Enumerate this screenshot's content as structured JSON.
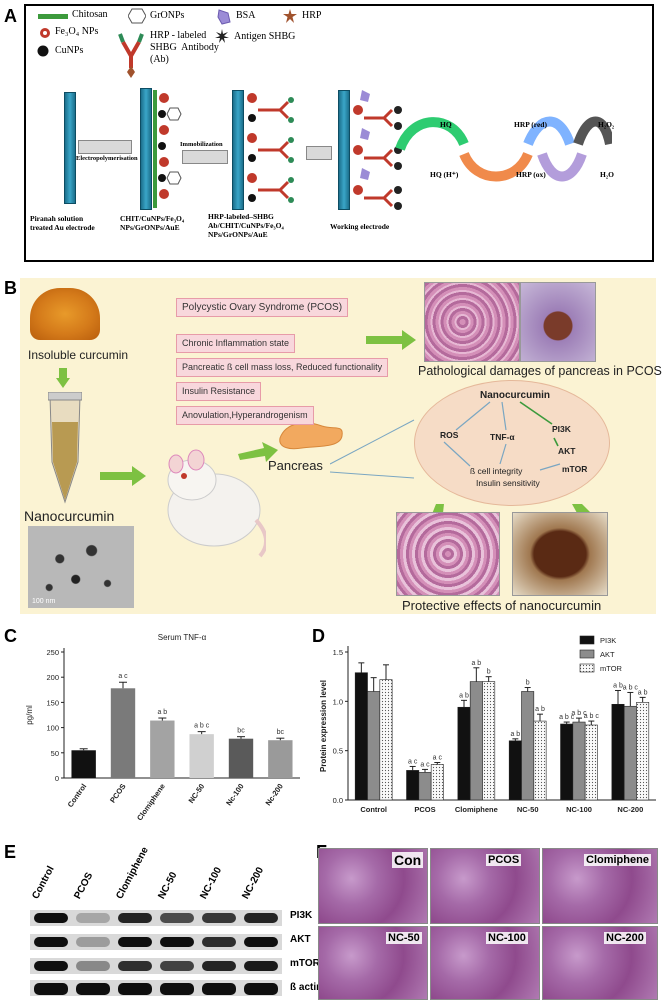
{
  "panel_labels": {
    "a": "A",
    "b": "B",
    "c": "C",
    "d": "D",
    "e": "E",
    "f": "F"
  },
  "panelA": {
    "legend": {
      "chitosan": "Chitosan",
      "fe3o4": "Fe₃O₄ NPs",
      "cunps": "CuNPs",
      "gronps": "GrONPs",
      "hrp_ab": "HRP - labeled\nSHBG  Antibody\n(Ab)",
      "bsa": "BSA",
      "hrp": "HRP",
      "antigen": "Antigen SHBG"
    },
    "steps": {
      "s1": "Electropolymerisation",
      "s2": "Immobilization"
    },
    "captions": {
      "c1": "Piranah solution\ntreated Au electrode",
      "c2": "CHIT/CuNPs/Fe₃O₄\nNPs/GrONPs/AuE",
      "c3": "HRP-labeled–SHBG\nAb/CHIT/CuNPs/Fe₃O₄\nNPs/GrONPs/AuE",
      "c4": "Working electrode"
    },
    "cycle": {
      "hq": "HQ",
      "hq_h": "HQ (H⁺)",
      "hrp_red": "HRP (red)",
      "hrp_ox": "HRP (ox)",
      "h2o2": "H₂O₂",
      "h2o": "H₂O"
    }
  },
  "panelB": {
    "boxes": [
      "Polycystic Ovary Syndrome (PCOS)",
      "Chronic Inflammation state",
      "Pancreatic ß cell mass loss, Reduced functionality",
      "Insulin Resistance",
      "Anovulation,Hyperandrogenism"
    ],
    "insoluble": "Insoluble curcumin",
    "nanocurcumin": "Nanocurcumin",
    "pancreas": "Pancreas",
    "patho": "Pathological damages of pancreas in PCOS",
    "protective": "Protective effects of nanocurcumin",
    "scale": "100 nm",
    "oval": {
      "title": "Nanocurcumin",
      "ros": "ROS",
      "tnf": "TNF-α",
      "pi3k": "PI3K",
      "akt": "AKT",
      "mtor": "mTOR",
      "l1": "ß cell integrity",
      "l2": "Insulin sensitivity"
    }
  },
  "chart_data": [
    {
      "type": "bar",
      "panel": "C",
      "title": "Serum TNF-α",
      "ylabel": "pg/ml",
      "ylim": [
        0,
        250
      ],
      "yticks": [
        0,
        50,
        100,
        150,
        200,
        250
      ],
      "categories": [
        "Control",
        "PCOS",
        "Clomiphene",
        "NC-50",
        "Nc-100",
        "Nc-200"
      ],
      "values": [
        55,
        178,
        114,
        87,
        78,
        75
      ],
      "errors": [
        3,
        12,
        5,
        5,
        4,
        4
      ],
      "sig": [
        "",
        "a c",
        "a b",
        "a b c",
        "bc",
        "bc"
      ],
      "colors": [
        "#111111",
        "#7a7a7a",
        "#a3a3a3",
        "#d0d0d0",
        "#5a5a5a",
        "#9a9a9a"
      ]
    },
    {
      "type": "bar",
      "panel": "D",
      "ylabel": "Protein expression level",
      "ylim": [
        0,
        1.5
      ],
      "yticks": [
        0.0,
        0.5,
        1.0,
        1.5
      ],
      "categories": [
        "Control",
        "PCOS",
        "Clomiphene",
        "NC-50",
        "NC-100",
        "NC-200"
      ],
      "series": [
        {
          "name": "PI3K",
          "values": [
            1.29,
            0.3,
            0.94,
            0.6,
            0.77,
            0.97
          ],
          "errors": [
            0.1,
            0.04,
            0.07,
            0.02,
            0.02,
            0.14
          ],
          "sig": [
            "",
            "a c",
            "a b",
            "a b",
            "a b c",
            "a b"
          ],
          "color": "#111111"
        },
        {
          "name": "AKT",
          "values": [
            1.1,
            0.28,
            1.2,
            1.1,
            0.79,
            0.95
          ],
          "errors": [
            0.14,
            0.03,
            0.14,
            0.04,
            0.04,
            0.14
          ],
          "sig": [
            "",
            "a c",
            "a b",
            "b",
            "a b c",
            "a b c"
          ],
          "color": "#8c8c8c"
        },
        {
          "name": "mTOR",
          "values": [
            1.22,
            0.36,
            1.2,
            0.8,
            0.76,
            0.99
          ],
          "errors": [
            0.15,
            0.02,
            0.05,
            0.07,
            0.04,
            0.05
          ],
          "sig": [
            "",
            "a c",
            "b",
            "a b",
            "a b c",
            "a b"
          ],
          "color": "#f2f2f2"
        }
      ]
    }
  ],
  "panelE": {
    "lanes": [
      "Control",
      "PCOS",
      "Clomiphene",
      "NC-50",
      "NC-100",
      "NC-200"
    ],
    "rows": [
      "PI3K",
      "AKT",
      "mTOR",
      "ß actin"
    ]
  },
  "panelF": {
    "labels": [
      "Con",
      "PCOS",
      "Clomiphene",
      "NC-50",
      "NC-100",
      "NC-200"
    ]
  }
}
